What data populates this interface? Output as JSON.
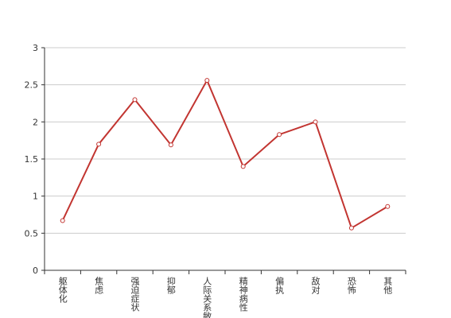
{
  "chart_data": {
    "type": "line",
    "categories": [
      "躯体化",
      "焦虑",
      "强迫症状",
      "抑郁",
      "人际关系敏感",
      "精神病性",
      "偏执",
      "敌对",
      "恐怖",
      "其他"
    ],
    "series": [
      {
        "color": "#c23531",
        "values": [
          0.67,
          1.7,
          2.3,
          1.69,
          2.56,
          1.4,
          1.83,
          2.0,
          0.57,
          0.86
        ]
      }
    ],
    "ylim": [
      0,
      3
    ],
    "yticks": [
      0,
      0.5,
      1,
      1.5,
      2,
      2.5,
      3
    ],
    "grid": true
  }
}
